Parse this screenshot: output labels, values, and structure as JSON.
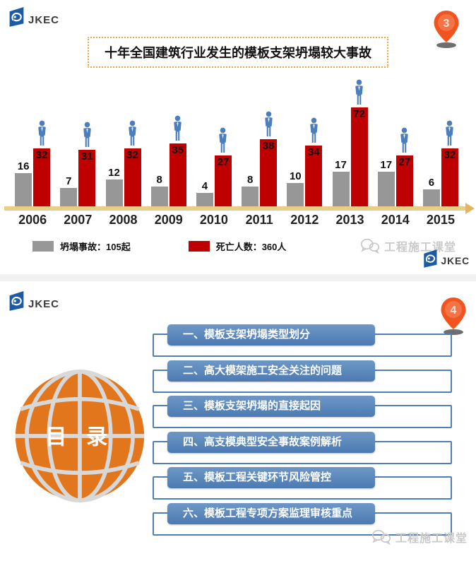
{
  "brand": {
    "name": "JKEC"
  },
  "slide1": {
    "page_marker": "3",
    "title": "十年全国建筑行业发生的模板支架坍塌较大事故",
    "chart_data": {
      "type": "bar",
      "title": "十年全国建筑行业发生的模板支架坍塌较大事故",
      "categories": [
        "2006",
        "2007",
        "2008",
        "2009",
        "2010",
        "2011",
        "2012",
        "2013",
        "2014",
        "2015"
      ],
      "series": [
        {
          "name": "坍塌事故",
          "color": "#979797",
          "values": [
            16,
            7,
            12,
            8,
            4,
            8,
            10,
            17,
            17,
            6
          ]
        },
        {
          "name": "死亡人数",
          "color": "#bf0000",
          "values": [
            32,
            31,
            32,
            35,
            27,
            38,
            34,
            72,
            27,
            32
          ]
        }
      ],
      "legend": [
        {
          "label": "坍塌事故：105起",
          "color": "#979797"
        },
        {
          "label": "死亡人数：360人",
          "color": "#bf0000"
        }
      ],
      "legend_position": "bottom",
      "xlabel": "",
      "ylabel": "",
      "grid": false,
      "axis_color": "#eacd85",
      "data_labels": true
    },
    "watermark": "工程施工课堂"
  },
  "slide2": {
    "page_marker": "4",
    "toc_title": "目 录",
    "items": [
      "一、模板支架坍塌类型划分",
      "二、高大模架施工安全关注的问题",
      "三、模板支架坍塌的直接起因",
      "四、高支模典型安全事故案例解析",
      "五、模板工程关键环节风险管控",
      "六、模板工程专项方案监理审核重点"
    ],
    "watermark": "工程施工课堂"
  },
  "colors": {
    "bar_red": "#bf0000",
    "bar_gray": "#979797",
    "person_blue": "#4a7ebc",
    "axis_gold": "#eacd85",
    "title_border_orange": "#f0a440",
    "toc_blue": "#4e7db6",
    "globe_orange": "#e2761c",
    "pin_orange": "#f1541e",
    "brand_blue": "#1d5aa4",
    "watermark_gray": "#c9c9c9"
  }
}
